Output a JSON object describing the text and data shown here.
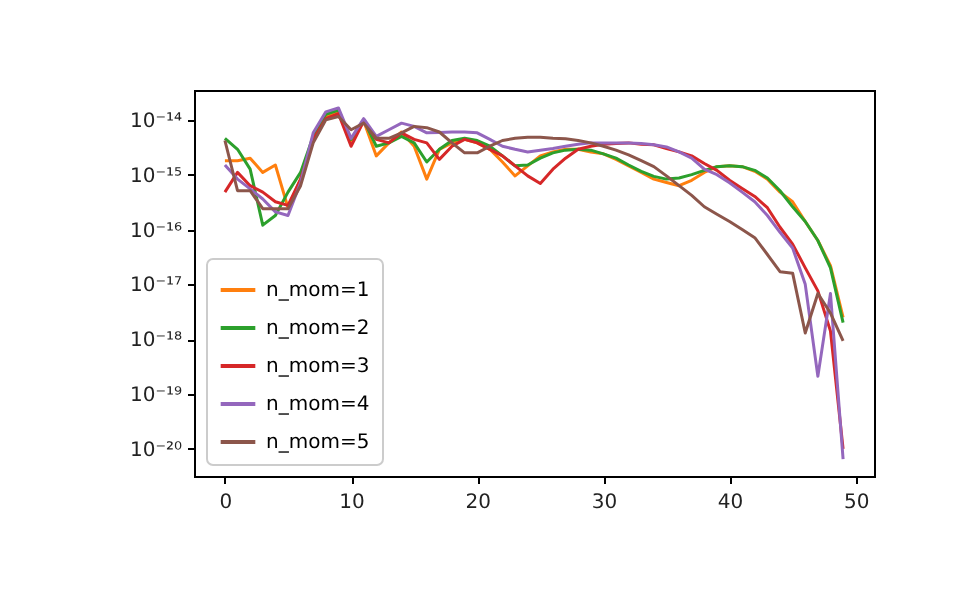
{
  "chart_data": {
    "type": "line",
    "x": [
      0,
      1,
      2,
      3,
      4,
      5,
      6,
      7,
      8,
      9,
      10,
      11,
      12,
      13,
      14,
      15,
      16,
      17,
      18,
      19,
      20,
      21,
      22,
      23,
      24,
      25,
      26,
      27,
      28,
      29,
      30,
      31,
      32,
      33,
      34,
      35,
      36,
      37,
      38,
      39,
      40,
      41,
      42,
      43,
      44,
      45,
      46,
      47,
      48,
      49
    ],
    "series": [
      {
        "name": "n_mom=1",
        "color": "#ff7f0e",
        "values": [
          1.8e-15,
          1.8e-15,
          2e-15,
          1.1e-15,
          1.5e-15,
          2.5e-16,
          8.3e-16,
          4.4e-15,
          1.15e-14,
          1.4e-14,
          3.8e-15,
          9.5e-15,
          2.2e-15,
          3.8e-15,
          6e-15,
          3.3e-15,
          8.3e-16,
          2.9e-15,
          3.8e-15,
          4.4e-15,
          3.8e-15,
          2.9e-15,
          1.7e-15,
          9.5e-16,
          1.45e-15,
          2.2e-15,
          2.6e-15,
          2.9e-15,
          2.9e-15,
          2.6e-15,
          2.4e-15,
          1.9e-15,
          1.45e-15,
          1.1e-15,
          8.3e-16,
          7.2e-16,
          6.3e-16,
          7.9e-16,
          1.1e-15,
          1.4e-15,
          1.45e-15,
          1.4e-15,
          1.15e-15,
          8.3e-16,
          4.8e-16,
          3.2e-16,
          1.4e-16,
          6.3e-17,
          2.2e-17,
          2.5e-18
        ]
      },
      {
        "name": "n_mom=2",
        "color": "#2ca02c",
        "values": [
          4.6e-15,
          2.9e-15,
          1.26e-15,
          1.2e-16,
          1.8e-16,
          4.8e-16,
          1.1e-15,
          5e-15,
          1.26e-14,
          1.5e-14,
          4.4e-15,
          1e-14,
          3.3e-15,
          3.8e-15,
          5e-15,
          3.8e-15,
          1.7e-15,
          2.9e-15,
          4.2e-15,
          4.6e-15,
          4.2e-15,
          3.3e-15,
          2.2e-15,
          1.45e-15,
          1.5e-15,
          2e-15,
          2.5e-15,
          2.8e-15,
          2.9e-15,
          2.8e-15,
          2.4e-15,
          2e-15,
          1.5e-15,
          1.15e-15,
          9.3e-16,
          8.3e-16,
          8.7e-16,
          1e-15,
          1.2e-15,
          1.4e-15,
          1.45e-15,
          1.4e-15,
          1.2e-15,
          8.7e-16,
          5.1e-16,
          2.6e-16,
          1.4e-16,
          6.3e-17,
          2e-17,
          2e-18
        ]
      },
      {
        "name": "n_mom=3",
        "color": "#d62728",
        "values": [
          4.8e-16,
          1.1e-15,
          6.3e-16,
          4.8e-16,
          3.2e-16,
          2.75e-16,
          8.3e-16,
          4.4e-15,
          1.05e-14,
          1.3e-14,
          3.3e-15,
          9.5e-15,
          4.4e-15,
          3.8e-15,
          5.8e-15,
          4.4e-15,
          3.8e-15,
          1.9e-15,
          3.3e-15,
          4.4e-15,
          3.8e-15,
          2.9e-15,
          2.2e-15,
          1.45e-15,
          9.5e-16,
          6.9e-16,
          1.26e-15,
          2e-15,
          2.9e-15,
          3.3e-15,
          3.6e-15,
          3.7e-15,
          3.8e-15,
          3.6e-15,
          3.5e-15,
          3e-15,
          2.6e-15,
          2.2e-15,
          1.6e-15,
          1.2e-15,
          7.9e-16,
          5.6e-16,
          4e-16,
          2.5e-16,
          1.1e-16,
          5.4e-17,
          2e-17,
          7.6e-18,
          1.4e-18,
          1e-20
        ]
      },
      {
        "name": "n_mom=4",
        "color": "#9467bd",
        "values": [
          1.5e-15,
          8.3e-16,
          5.5e-16,
          3.6e-16,
          2.1e-16,
          1.8e-16,
          7.2e-16,
          5.8e-15,
          1.4e-14,
          1.65e-14,
          4.6e-15,
          1.05e-14,
          5e-15,
          6.6e-15,
          8.7e-15,
          7.6e-15,
          5.8e-15,
          5.9e-15,
          6e-15,
          6e-15,
          5.8e-15,
          4.4e-15,
          3.3e-15,
          2.9e-15,
          2.6e-15,
          2.8e-15,
          3e-15,
          3.3e-15,
          3.6e-15,
          3.8e-15,
          3.8e-15,
          3.8e-15,
          3.8e-15,
          3.7e-15,
          3.5e-15,
          3.2e-15,
          2.6e-15,
          2e-15,
          1.26e-15,
          1e-15,
          7.1e-16,
          4.8e-16,
          3.2e-16,
          1.8e-16,
          8.9e-17,
          4.6e-17,
          1e-17,
          2.1e-19,
          6.8e-18,
          6.5e-21
        ]
      },
      {
        "name": "n_mom=5",
        "color": "#8c564b",
        "values": [
          4.2e-15,
          5.1e-16,
          5.1e-16,
          2.4e-16,
          2.4e-16,
          2.4e-16,
          6.3e-16,
          3.8e-15,
          1e-14,
          1.15e-14,
          6.6e-15,
          8.7e-15,
          4.6e-15,
          4.6e-15,
          5.8e-15,
          7.6e-15,
          7.2e-15,
          6e-15,
          3.8e-15,
          2.5e-15,
          2.5e-15,
          3.3e-15,
          4.2e-15,
          4.6e-15,
          4.8e-15,
          4.8e-15,
          4.6e-15,
          4.5e-15,
          4.2e-15,
          3.8e-15,
          3.3e-15,
          2.8e-15,
          2.3e-15,
          1.8e-15,
          1.4e-15,
          9.5e-16,
          6.3e-16,
          4.2e-16,
          2.6e-16,
          1.9e-16,
          1.4e-16,
          1e-16,
          7.1e-17,
          3.5e-17,
          1.7e-17,
          1.6e-17,
          1.3e-18,
          6.8e-18,
          3e-18,
          9.3e-19
        ]
      }
    ],
    "xlim": [
      -2.45,
      51.45
    ],
    "xticks": [
      0,
      10,
      20,
      30,
      40,
      50
    ],
    "log": "y",
    "ylim": [
      3.2e-21,
      3.5e-14
    ],
    "yticks": [
      {
        "value": 1e-20,
        "label": "10⁻²⁰"
      },
      {
        "value": 1e-19,
        "label": "10⁻¹⁹"
      },
      {
        "value": 1e-18,
        "label": "10⁻¹⁸"
      },
      {
        "value": 1e-17,
        "label": "10⁻¹⁷"
      },
      {
        "value": 1e-16,
        "label": "10⁻¹⁶"
      },
      {
        "value": 1e-15,
        "label": "10⁻¹⁵"
      },
      {
        "value": 1e-14,
        "label": "10⁻¹⁴"
      }
    ],
    "legend": "bottom left"
  }
}
